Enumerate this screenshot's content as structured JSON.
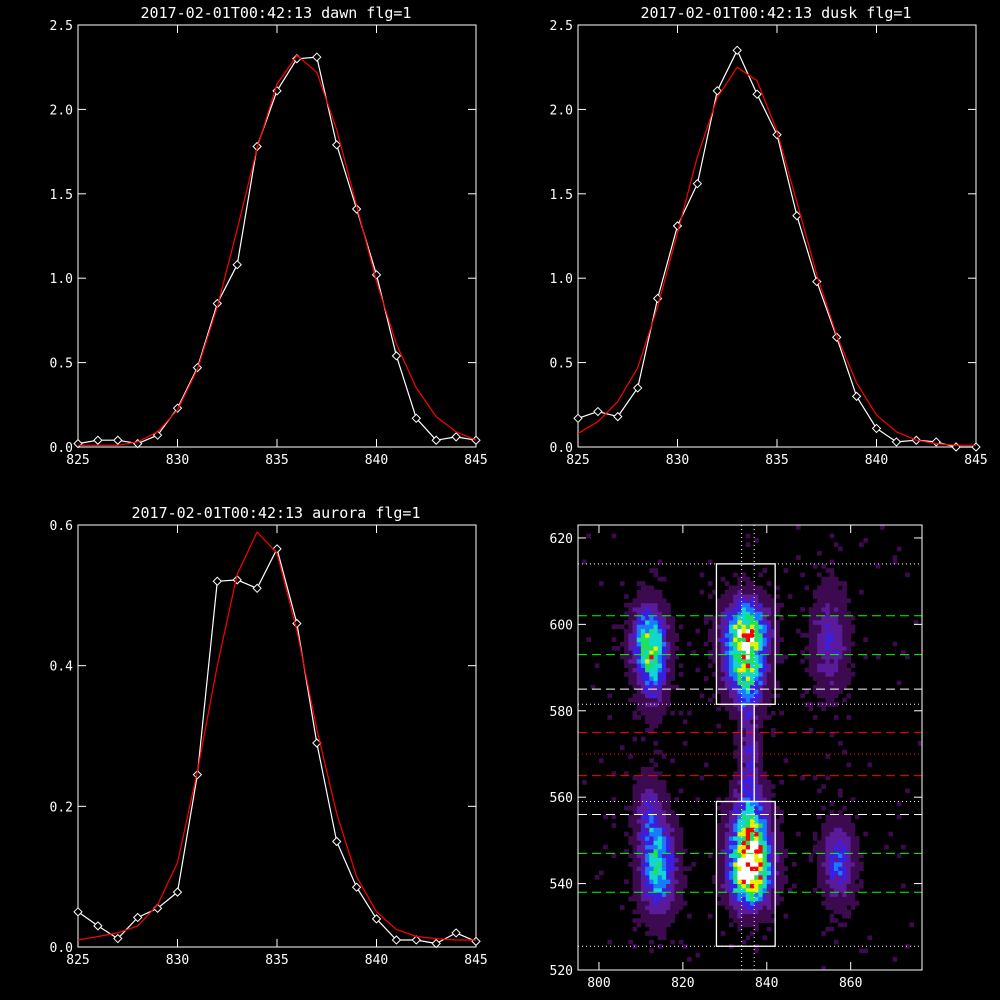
{
  "chart_data": [
    {
      "type": "line",
      "title": "2017-02-01T00:42:13 dawn flg=1",
      "xlabel": "",
      "ylabel": "",
      "xlim": [
        825,
        845
      ],
      "ylim": [
        0,
        2.5
      ],
      "xticks": [
        "825",
        "830",
        "835",
        "840",
        "845"
      ],
      "yticks": [
        "0.0",
        "0.5",
        "1.0",
        "1.5",
        "2.0",
        "2.5"
      ],
      "series": [
        {
          "color": "#ffffff",
          "marker": "diamond",
          "x": [
            825,
            826,
            827,
            828,
            829,
            830,
            831,
            832,
            833,
            834,
            835,
            836,
            837,
            838,
            839,
            840,
            841,
            842,
            843,
            844,
            845
          ],
          "y": [
            0.02,
            0.04,
            0.04,
            0.02,
            0.07,
            0.23,
            0.47,
            0.85,
            1.08,
            1.78,
            2.11,
            2.3,
            2.31,
            1.79,
            1.41,
            1.02,
            0.54,
            0.17,
            0.04,
            0.06,
            0.04
          ]
        },
        {
          "color": "#ff0000",
          "marker": "none",
          "x": [
            825,
            826,
            827,
            828,
            829,
            830,
            831,
            832,
            833,
            834,
            835,
            836,
            837,
            838,
            839,
            840,
            841,
            842,
            843,
            844,
            845
          ],
          "y": [
            0.01,
            0.01,
            0.01,
            0.03,
            0.09,
            0.22,
            0.46,
            0.83,
            1.29,
            1.77,
            2.15,
            2.32,
            2.22,
            1.88,
            1.43,
            0.98,
            0.61,
            0.35,
            0.18,
            0.09,
            0.04
          ]
        }
      ]
    },
    {
      "type": "line",
      "title": "2017-02-01T00:42:13 dusk flg=1",
      "xlabel": "",
      "ylabel": "",
      "xlim": [
        825,
        845
      ],
      "ylim": [
        0,
        2.5
      ],
      "xticks": [
        "825",
        "830",
        "835",
        "840",
        "845"
      ],
      "yticks": [
        "0.0",
        "0.5",
        "1.0",
        "1.5",
        "2.0",
        "2.5"
      ],
      "series": [
        {
          "color": "#ffffff",
          "marker": "diamond",
          "x": [
            825,
            826,
            827,
            828,
            829,
            830,
            831,
            832,
            833,
            834,
            835,
            836,
            837,
            838,
            839,
            840,
            841,
            842,
            843,
            844,
            845
          ],
          "y": [
            0.17,
            0.21,
            0.18,
            0.35,
            0.88,
            1.31,
            1.56,
            2.11,
            2.35,
            2.09,
            1.85,
            1.37,
            0.98,
            0.65,
            0.3,
            0.11,
            0.03,
            0.04,
            0.03,
            0.0,
            0.0
          ]
        },
        {
          "color": "#ff0000",
          "marker": "none",
          "x": [
            825,
            826,
            827,
            828,
            829,
            830,
            831,
            832,
            833,
            834,
            835,
            836,
            837,
            838,
            839,
            840,
            841,
            842,
            843,
            844,
            845
          ],
          "y": [
            0.08,
            0.15,
            0.27,
            0.47,
            0.83,
            1.27,
            1.72,
            2.07,
            2.25,
            2.17,
            1.87,
            1.45,
            1.02,
            0.66,
            0.38,
            0.19,
            0.09,
            0.04,
            0.02,
            0.01,
            0.01
          ]
        }
      ]
    },
    {
      "type": "line",
      "title": "2017-02-01T00:42:13 aurora flg=1",
      "xlabel": "",
      "ylabel": "",
      "xlim": [
        825,
        845
      ],
      "ylim": [
        0,
        0.6
      ],
      "xticks": [
        "825",
        "830",
        "835",
        "840",
        "845"
      ],
      "yticks": [
        "0.0",
        "0.2",
        "0.4",
        "0.6"
      ],
      "series": [
        {
          "color": "#ffffff",
          "marker": "diamond",
          "x": [
            825,
            826,
            827,
            828,
            829,
            830,
            831,
            832,
            833,
            834,
            835,
            836,
            837,
            838,
            839,
            840,
            841,
            842,
            843,
            844,
            845
          ],
          "y": [
            0.05,
            0.03,
            0.012,
            0.042,
            0.055,
            0.078,
            0.245,
            0.52,
            0.522,
            0.51,
            0.566,
            0.46,
            0.29,
            0.15,
            0.085,
            0.04,
            0.01,
            0.01,
            0.005,
            0.02,
            0.008
          ]
        },
        {
          "color": "#ff0000",
          "marker": "none",
          "x": [
            825,
            826,
            827,
            828,
            829,
            830,
            831,
            832,
            833,
            834,
            835,
            836,
            837,
            838,
            839,
            840,
            841,
            842,
            843,
            844,
            845
          ],
          "y": [
            0.01,
            0.015,
            0.02,
            0.03,
            0.06,
            0.12,
            0.25,
            0.4,
            0.53,
            0.59,
            0.56,
            0.45,
            0.31,
            0.19,
            0.1,
            0.05,
            0.025,
            0.015,
            0.012,
            0.01,
            0.01
          ]
        }
      ]
    },
    {
      "type": "heatmap",
      "title": "",
      "xlabel": "",
      "ylabel": "",
      "xlim": [
        795,
        877
      ],
      "ylim": [
        520,
        623
      ],
      "xticks": [
        "800",
        "820",
        "840",
        "860"
      ],
      "yticks": [
        "520",
        "540",
        "560",
        "580",
        "600",
        "620"
      ],
      "colormap": [
        "#000000",
        "#3d0a50",
        "#5a1a9a",
        "#3a1fe0",
        "#1a7aff",
        "#13d6d0",
        "#20e060",
        "#e8f000",
        "#ff0000",
        "#ffffff"
      ],
      "blobs": [
        {
          "x": 812,
          "y": 596,
          "sx": 2.6,
          "sy": 5.5,
          "peak": 0.62
        },
        {
          "x": 813,
          "y": 588,
          "sx": 2.4,
          "sy": 6,
          "peak": 0.25
        },
        {
          "x": 814,
          "y": 544,
          "sx": 2.8,
          "sy": 7,
          "peak": 0.58
        },
        {
          "x": 812,
          "y": 557,
          "sx": 2.4,
          "sy": 5,
          "peak": 0.22
        },
        {
          "x": 835,
          "y": 598,
          "sx": 3.5,
          "sy": 5,
          "peak": 0.8
        },
        {
          "x": 835,
          "y": 588,
          "sx": 3.0,
          "sy": 5,
          "peak": 0.55
        },
        {
          "x": 836,
          "y": 543,
          "sx": 3.3,
          "sy": 5.5,
          "peak": 0.95
        },
        {
          "x": 836,
          "y": 553,
          "sx": 3.0,
          "sy": 6,
          "peak": 0.55
        },
        {
          "x": 836,
          "y": 570,
          "sx": 1.5,
          "sy": 7,
          "peak": 0.28
        },
        {
          "x": 855,
          "y": 596,
          "sx": 2.8,
          "sy": 8,
          "peak": 0.25
        },
        {
          "x": 857,
          "y": 545,
          "sx": 2.6,
          "sy": 6,
          "peak": 0.35
        }
      ],
      "boxes": [
        {
          "x0": 828,
          "x1": 842,
          "y0": 581.5,
          "y1": 614,
          "color": "#ffffff"
        },
        {
          "x0": 828,
          "x1": 842,
          "y0": 525.5,
          "y1": 559,
          "color": "#ffffff"
        },
        {
          "x0": 834,
          "x1": 837,
          "y0": 559,
          "y1": 581.5,
          "color": "#ffffff"
        }
      ],
      "hlines": [
        {
          "y": 614,
          "color": "#ffffff",
          "style": "dotted"
        },
        {
          "y": 602,
          "color": "#00ff00",
          "style": "dashed"
        },
        {
          "y": 593,
          "color": "#00ff00",
          "style": "dashed"
        },
        {
          "y": 585,
          "color": "#ffffff",
          "style": "dashed"
        },
        {
          "y": 581.5,
          "color": "#ffffff",
          "style": "dotted"
        },
        {
          "y": 575,
          "color": "#ff0000",
          "style": "dashed"
        },
        {
          "y": 570,
          "color": "#ff0000",
          "style": "dotted"
        },
        {
          "y": 565,
          "color": "#ff0000",
          "style": "dashed"
        },
        {
          "y": 559,
          "color": "#ffffff",
          "style": "dotted"
        },
        {
          "y": 556,
          "color": "#ffffff",
          "style": "dashed"
        },
        {
          "y": 547,
          "color": "#00ff00",
          "style": "dashed"
        },
        {
          "y": 538,
          "color": "#00ff00",
          "style": "dashed"
        },
        {
          "y": 525.5,
          "color": "#ffffff",
          "style": "dotted"
        }
      ],
      "vlines": [
        {
          "x": 834,
          "color": "#ffffff",
          "style": "dotted"
        },
        {
          "x": 837,
          "color": "#ffffff",
          "style": "dotted"
        }
      ]
    }
  ]
}
